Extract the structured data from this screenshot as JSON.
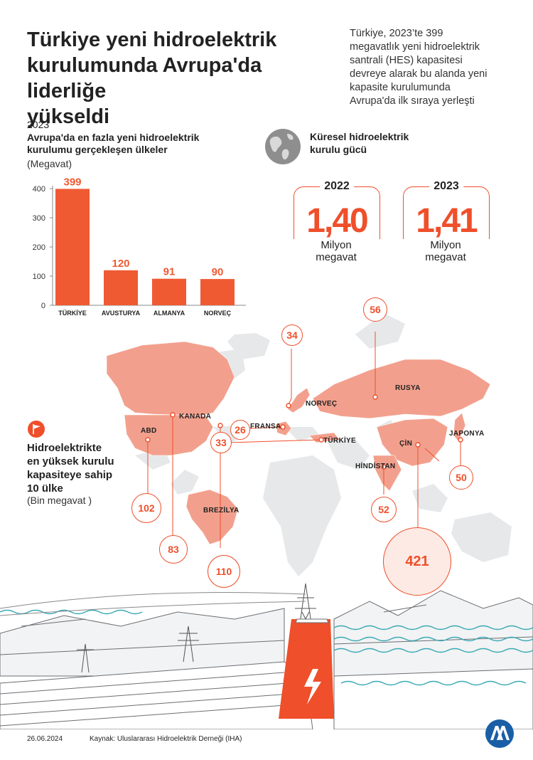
{
  "header": {
    "title": "Türkiye yeni hidroelektrik\nkurulumunda Avrupa'da liderliğe\nyükseldi",
    "intro": "Türkiye, 2023’te 399\nmegavatlık yeni hidroelektrik\nsantrali (HES) kapasitesi\ndevreye alarak bu alanda yeni\nkapasite kurulumunda\nAvrupa'da ilk sıraya yerleşti"
  },
  "bar_section": {
    "year": "2023",
    "title": "Avrupa'da en fazla yeni hidroelektrik\nkurulumu gerçekleşen ülkeler",
    "unit": "(Megavat)"
  },
  "chart_data": {
    "type": "bar",
    "categories": [
      "TÜRKİYE",
      "AVUSTURYA",
      "ALMANYA",
      "NORVEÇ"
    ],
    "values": [
      399,
      120,
      91,
      90
    ],
    "title": "Avrupa'da en fazla yeni hidroelektrik kurulumu gerçekleşen ülkeler",
    "ylabel": "(Megavat)",
    "ylim": [
      0,
      400
    ],
    "yticks": [
      0,
      100,
      200,
      300,
      400
    ],
    "bar_color": "#ef5a33",
    "grid": false
  },
  "global": {
    "title": "Küresel hidroelektrik\nkurulu gücü",
    "icon": "globe-icon",
    "stats": [
      {
        "year": "2022",
        "value": "1,40",
        "unit": "Milyon\nmegavat"
      },
      {
        "year": "2023",
        "value": "1,41",
        "unit": "Milyon\nmegavat"
      }
    ]
  },
  "map": {
    "title": "Hidroelektrikte\nen yüksek kurulu\nkapasiteye sahip\n10 ülke",
    "unit": "(Bin megavat )",
    "icon": "flag-icon",
    "countries": [
      {
        "name": "ÇİN",
        "value": "421"
      },
      {
        "name": "BREZİLYA",
        "value": "110"
      },
      {
        "name": "ABD",
        "value": "102"
      },
      {
        "name": "KANADA",
        "value": "83"
      },
      {
        "name": "RUSYA",
        "value": "56"
      },
      {
        "name": "HİNDİSTAN",
        "value": "52"
      },
      {
        "name": "JAPONYA",
        "value": "50"
      },
      {
        "name": "NORVEÇ",
        "value": "34"
      },
      {
        "name": "TÜRKİYE",
        "value": "33"
      },
      {
        "name": "FRANSA",
        "value": "26"
      }
    ]
  },
  "footer": {
    "date": "26.06.2024",
    "source": "Kaynak: Uluslararası Hidroelektrik Derneği (IHA)",
    "logo_text": "AA"
  },
  "colors": {
    "accent": "#ef4f2b",
    "land": "#f2a08d",
    "land_grey": "#e4e6e8",
    "teal": "#3aa9b5"
  }
}
